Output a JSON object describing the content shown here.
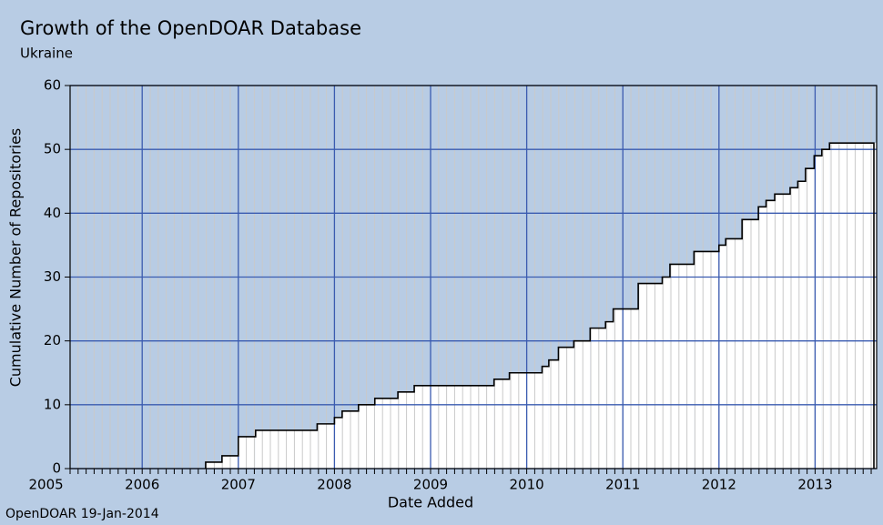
{
  "chart_data": {
    "type": "step",
    "title": "Growth of the OpenDOAR Database",
    "subtitle": "Ukraine",
    "y_label": "Cumulative Number of Repositories",
    "x_label": "Date Added",
    "footer": "OpenDOAR 19-Jan-2014",
    "x": [
      2006.66,
      2006.83,
      2007.0,
      2007.18,
      2007.82,
      2008.0,
      2008.08,
      2008.25,
      2008.42,
      2008.66,
      2008.83,
      2009.66,
      2009.82,
      2010.16,
      2010.23,
      2010.33,
      2010.49,
      2010.66,
      2010.82,
      2010.9,
      2011.16,
      2011.41,
      2011.49,
      2011.74,
      2012.0,
      2012.07,
      2012.24,
      2012.41,
      2012.49,
      2012.58,
      2012.74,
      2012.82,
      2012.9,
      2012.99,
      2013.07,
      2013.15
    ],
    "values": [
      1,
      2,
      5,
      6,
      7,
      8,
      9,
      10,
      11,
      12,
      13,
      14,
      15,
      16,
      17,
      19,
      20,
      22,
      23,
      25,
      29,
      30,
      32,
      34,
      35,
      36,
      39,
      41,
      42,
      43,
      44,
      45,
      47,
      49,
      50,
      51
    ],
    "color": "#ffffff",
    "xlim": [
      2005.25,
      2013.64
    ],
    "ylim": [
      0,
      60
    ],
    "xticks": [
      2005,
      2006,
      2007,
      2008,
      2009,
      2010,
      2011,
      2012,
      2013
    ],
    "yticks": [
      0,
      10,
      20,
      30,
      40,
      50,
      60
    ],
    "grid": true
  }
}
